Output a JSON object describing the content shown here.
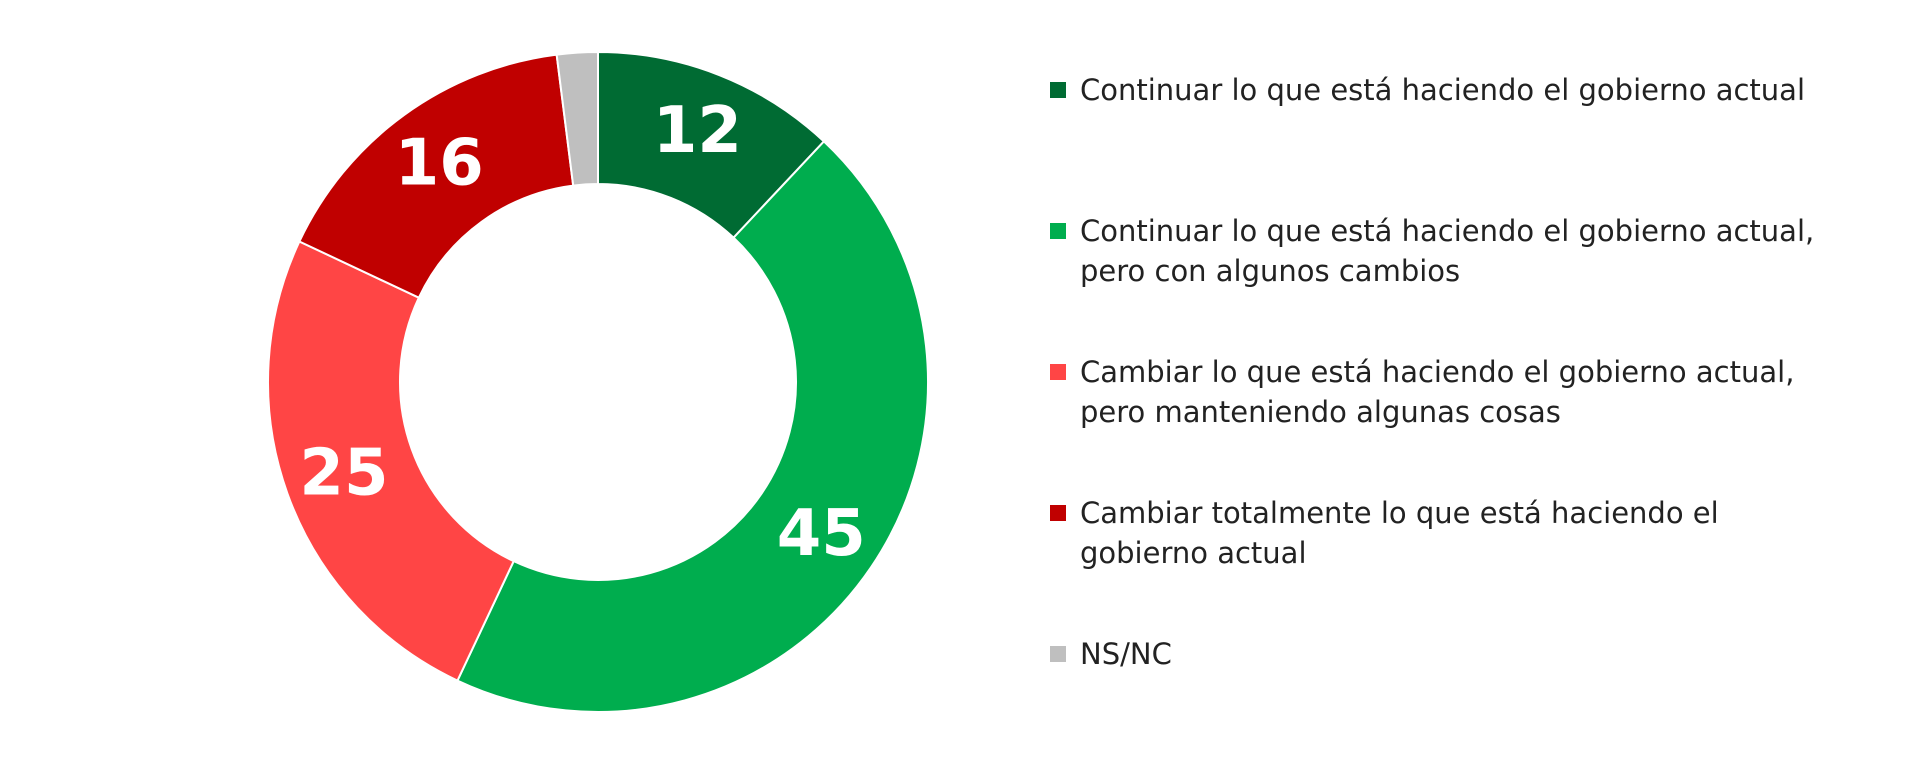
{
  "chart_data": {
    "type": "pie",
    "variant": "donut",
    "title": "",
    "categories": [
      "Continuar lo que está haciendo el gobierno actual",
      "Continuar lo que está haciendo el gobierno actual, pero con algunos cambios",
      "Cambiar lo que está haciendo el gobierno actual, pero manteniendo algunas cosas",
      "Cambiar totalmente lo que está haciendo el gobierno actual",
      "NS/NC"
    ],
    "values": [
      12,
      45,
      25,
      16,
      2
    ],
    "data_labels": [
      "12",
      "45",
      "25",
      "16",
      ""
    ],
    "colors": [
      "#006b33",
      "#00ad4e",
      "#ff4545",
      "#c00000",
      "#bfbfbf"
    ],
    "legend_position": "right"
  }
}
